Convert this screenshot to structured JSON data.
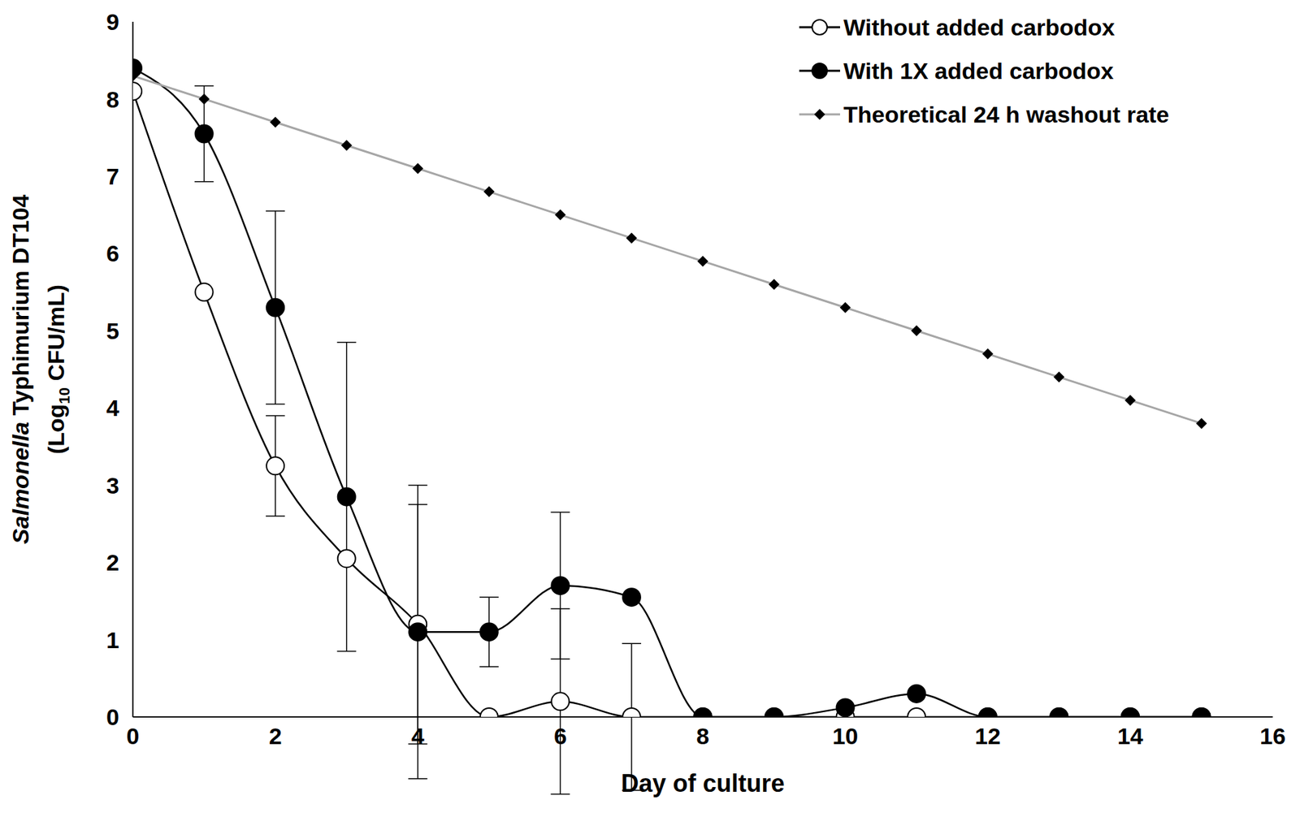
{
  "chart_data": {
    "type": "line",
    "x_label": "Day of culture",
    "y_label": [
      "Salmonella Typhimurium DT104",
      "(Log10 CFU/mL)"
    ],
    "x": [
      0,
      1,
      2,
      3,
      4,
      5,
      6,
      7,
      8,
      9,
      10,
      11,
      12,
      13,
      14,
      15
    ],
    "xlim": [
      0,
      16
    ],
    "xticks": [
      0,
      2,
      4,
      6,
      8,
      10,
      12,
      14,
      16
    ],
    "ylim": [
      0,
      9
    ],
    "yticks": [
      0,
      1,
      2,
      3,
      4,
      5,
      6,
      7,
      8,
      9
    ],
    "grid": false,
    "legend": "top-right",
    "series": [
      {
        "name": "Without added carbodox",
        "color": "#000000",
        "marker": "open_circle",
        "line_style": "smooth",
        "values": [
          8.1,
          5.5,
          3.25,
          2.05,
          1.2,
          0,
          0.2,
          0,
          0,
          0,
          0,
          0,
          0,
          0,
          0,
          0
        ],
        "error": [
          null,
          null,
          0.65,
          null,
          1.55,
          null,
          1.2,
          0.95,
          null,
          null,
          null,
          null,
          null,
          null,
          null,
          null
        ]
      },
      {
        "name": "With 1X added carbodox",
        "color": "#000000",
        "marker": "filled_circle",
        "line_style": "smooth",
        "values": [
          8.4,
          7.55,
          5.3,
          2.85,
          1.1,
          1.1,
          1.7,
          1.55,
          0,
          0,
          0.12,
          0.3,
          0,
          0,
          0,
          0
        ],
        "error": [
          null,
          0.62,
          1.25,
          2.0,
          1.9,
          0.45,
          0.95,
          null,
          null,
          null,
          null,
          null,
          null,
          null,
          null,
          null
        ]
      },
      {
        "name": "Theoretical 24 h washout rate",
        "color": "#a6a6a6",
        "marker": "diamond",
        "line_style": "straight",
        "values": [
          8.3,
          8.0,
          7.7,
          7.4,
          7.1,
          6.8,
          6.5,
          6.2,
          5.9,
          5.6,
          5.3,
          5.0,
          4.7,
          4.4,
          4.1,
          3.8
        ]
      }
    ]
  }
}
